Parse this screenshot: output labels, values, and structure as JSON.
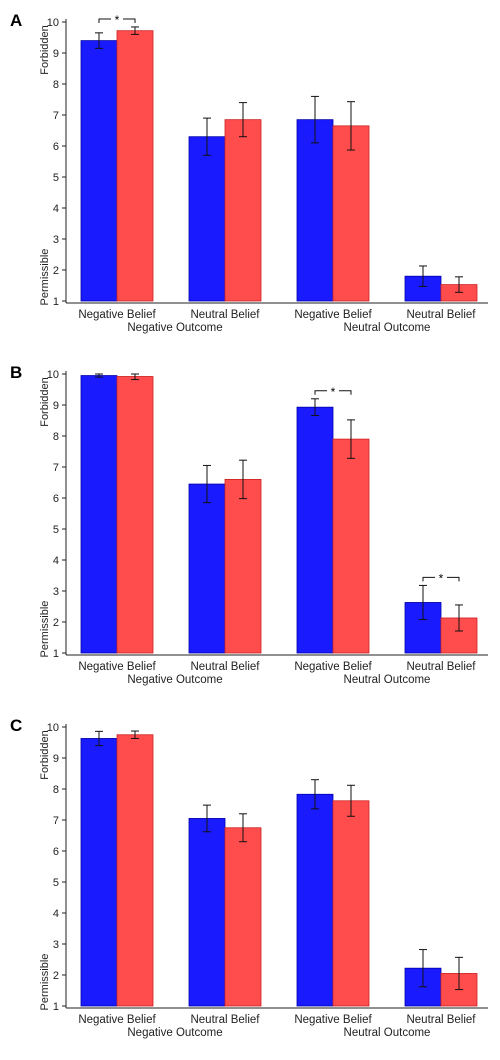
{
  "chart_data": [
    {
      "type": "bar",
      "panel_label": "A",
      "categories": [
        "Negative Belief",
        "Neutral Belief",
        "Negative Belief",
        "Neutral Belief"
      ],
      "groups": [
        "Negative Outcome",
        "Neutral Outcome"
      ],
      "ylim": [
        1,
        10
      ],
      "yticks": [
        "1",
        "2",
        "3",
        "4",
        "5",
        "6",
        "7",
        "8",
        "9",
        "10"
      ],
      "ylabel_top": "Forbidden",
      "ylabel_bottom": "Permissible",
      "series": [
        {
          "color": "#1a1aff",
          "values": [
            9.4,
            6.3,
            6.85,
            1.8
          ],
          "errors": [
            0.25,
            0.6,
            0.75,
            0.33
          ]
        },
        {
          "color": "#ff4d4d",
          "values": [
            9.72,
            6.85,
            6.65,
            1.53
          ],
          "errors": [
            0.12,
            0.55,
            0.78,
            0.25
          ]
        }
      ],
      "significance": [
        {
          "category": 0,
          "label": "*"
        }
      ]
    },
    {
      "type": "bar",
      "panel_label": "B",
      "categories": [
        "Negative Belief",
        "Neutral Belief",
        "Negative Belief",
        "Neutral Belief"
      ],
      "groups": [
        "Negative Outcome",
        "Neutral Outcome"
      ],
      "ylim": [
        1,
        10
      ],
      "yticks": [
        "1",
        "2",
        "3",
        "4",
        "5",
        "6",
        "7",
        "8",
        "9",
        "10"
      ],
      "ylabel_top": "Forbidden",
      "ylabel_bottom": "Permissible",
      "series": [
        {
          "color": "#1a1aff",
          "values": [
            9.95,
            6.45,
            8.93,
            2.63
          ],
          "errors": [
            0.05,
            0.6,
            0.27,
            0.55
          ]
        },
        {
          "color": "#ff4d4d",
          "values": [
            9.92,
            6.6,
            7.9,
            2.13
          ],
          "errors": [
            0.1,
            0.62,
            0.62,
            0.42
          ]
        }
      ],
      "significance": [
        {
          "category": 2,
          "label": "*"
        },
        {
          "category": 3,
          "label": "*"
        }
      ]
    },
    {
      "type": "bar",
      "panel_label": "C",
      "categories": [
        "Negative Belief",
        "Neutral Belief",
        "Negative Belief",
        "Neutral Belief"
      ],
      "groups": [
        "Negative Outcome",
        "Neutral Outcome"
      ],
      "ylim": [
        1,
        10
      ],
      "yticks": [
        "1",
        "2",
        "3",
        "4",
        "5",
        "6",
        "7",
        "8",
        "9",
        "10"
      ],
      "ylabel_top": "Forbidden",
      "ylabel_bottom": "Permissible",
      "series": [
        {
          "color": "#1a1aff",
          "values": [
            9.63,
            7.05,
            7.83,
            2.22
          ],
          "errors": [
            0.23,
            0.43,
            0.47,
            0.6
          ]
        },
        {
          "color": "#ff4d4d",
          "values": [
            9.75,
            6.75,
            7.62,
            2.05
          ],
          "errors": [
            0.12,
            0.45,
            0.5,
            0.52
          ]
        }
      ],
      "significance": []
    }
  ]
}
